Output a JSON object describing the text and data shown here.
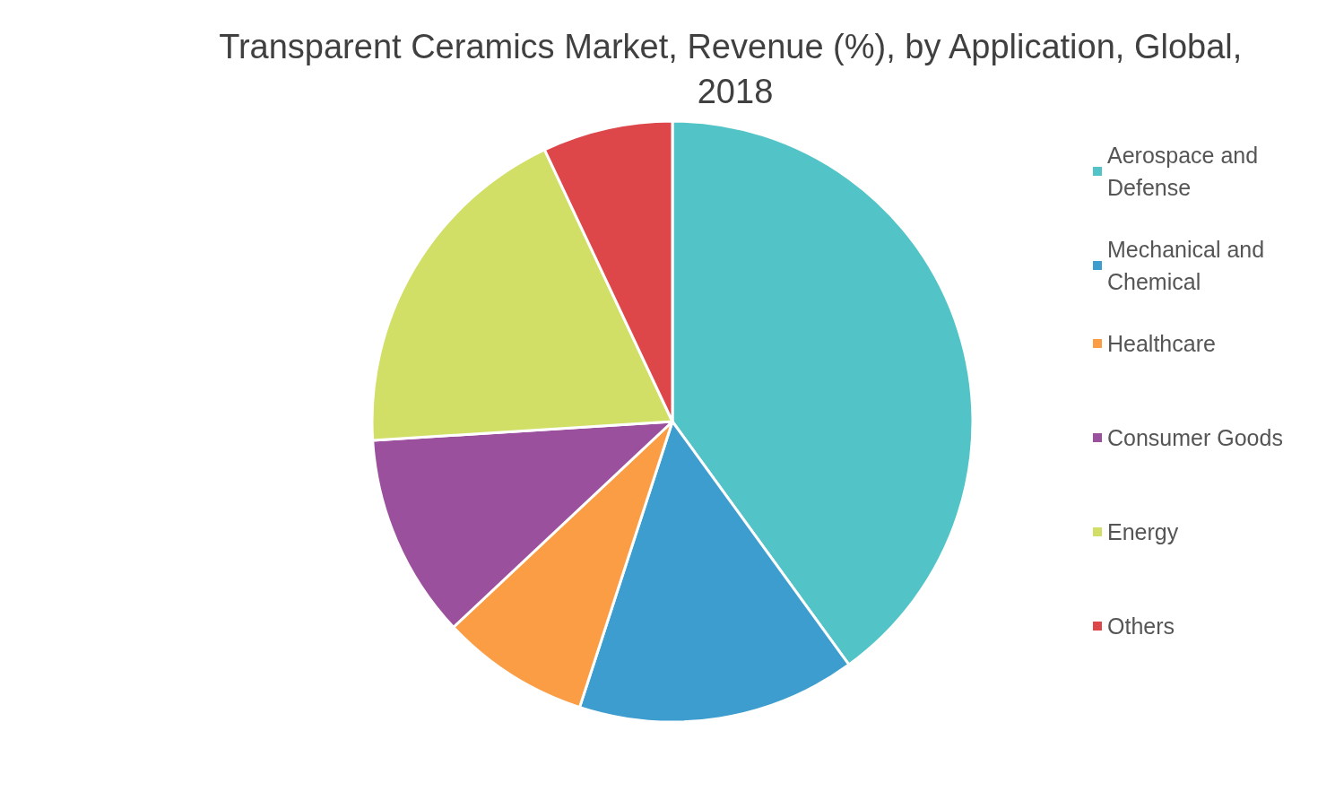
{
  "chart_data": {
    "type": "pie",
    "title": "Transparent Ceramics Market, Revenue (%), by Application, Global, 2018",
    "categories": [
      "Aerospace and Defense",
      "Mechanical and Chemical",
      "Healthcare",
      "Consumer Goods",
      "Energy",
      "Others"
    ],
    "values": [
      40,
      15,
      8,
      11,
      19,
      7
    ],
    "colors": [
      "#52c3c6",
      "#3d9dce",
      "#fa9d45",
      "#9b509d",
      "#d1df67",
      "#dd474a"
    ],
    "legend": "right"
  }
}
